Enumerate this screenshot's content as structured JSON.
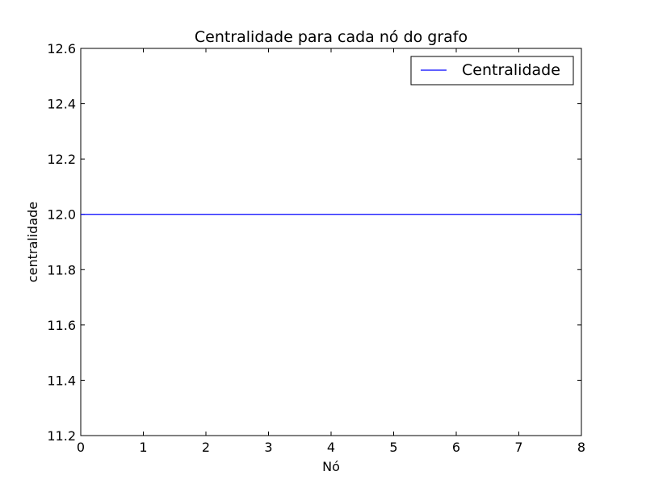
{
  "chart_data": {
    "type": "line",
    "title": "Centralidade para cada nó do grafo",
    "xlabel": "Nó",
    "ylabel": "centralidade",
    "xlim": [
      0,
      8
    ],
    "ylim": [
      11.2,
      12.6
    ],
    "xticks": [
      0,
      1,
      2,
      3,
      4,
      5,
      6,
      7,
      8
    ],
    "xtick_labels": [
      "0",
      "1",
      "2",
      "3",
      "4",
      "5",
      "6",
      "7",
      "8"
    ],
    "yticks": [
      11.2,
      11.4,
      11.6,
      11.8,
      12.0,
      12.2,
      12.4,
      12.6
    ],
    "ytick_labels": [
      "11.2",
      "11.4",
      "11.6",
      "11.8",
      "12.0",
      "12.2",
      "12.4",
      "12.6"
    ],
    "grid": false,
    "legend_position": "top-right",
    "series": [
      {
        "name": "Centralidade",
        "color": "#0000ff",
        "x": [
          0,
          1,
          2,
          3,
          4,
          5,
          6,
          7,
          8
        ],
        "y": [
          12.0,
          12.0,
          12.0,
          12.0,
          12.0,
          12.0,
          12.0,
          12.0,
          12.0
        ]
      }
    ]
  }
}
